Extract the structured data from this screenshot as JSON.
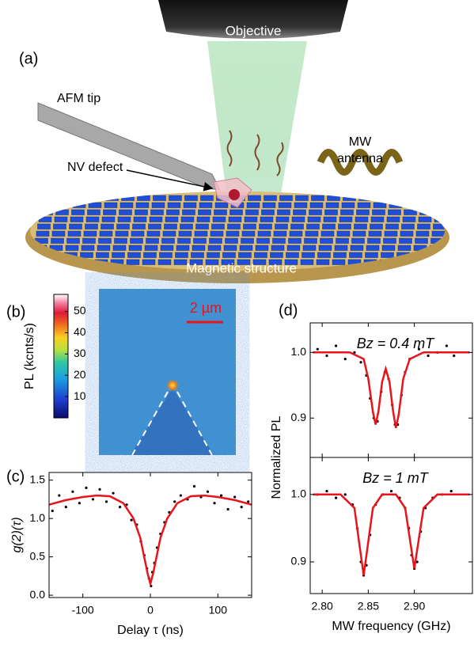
{
  "panels": [
    "(a)",
    "(b)",
    "(c)",
    "(d)"
  ],
  "illustration": {
    "objective": "Objective",
    "afm_tip": "AFM tip",
    "nv_defect": "NV defect",
    "mw_antenna": [
      "MW",
      "antenna"
    ],
    "magnetic_structure": "Magnetic structure"
  },
  "colorbar": {
    "label": "PL (kcnts/s)",
    "lim": [
      0,
      58
    ],
    "ticks": [
      10,
      20,
      30,
      40,
      50
    ]
  },
  "scale_bar": "2 µm",
  "chart_data": [
    {
      "type": "line",
      "xlabel": "Delay τ (ns)",
      "ylabel": "g(2)(τ)",
      "xlim": [
        -150,
        150
      ],
      "ylim": [
        -0.03,
        1.6
      ],
      "xticks": [
        -100,
        0,
        100
      ],
      "yticks": [
        {
          "value": 0,
          "label": "0.0"
        },
        0.5,
        {
          "value": 1,
          "label": "1.0"
        },
        1.5
      ],
      "series": [
        {
          "type": "scatter",
          "color": "#000000",
          "x": [
            -145,
            -135,
            -125,
            -115,
            -105,
            -95,
            -85,
            -75,
            -65,
            -55,
            -45,
            -35,
            -28,
            -20,
            -14,
            -9,
            -5,
            -2,
            1,
            3,
            6,
            10,
            15,
            21,
            28,
            36,
            45,
            55,
            65,
            75,
            85,
            95,
            105,
            115,
            125,
            135,
            145
          ],
          "values": [
            1.1,
            1.3,
            1.15,
            1.35,
            1.2,
            1.4,
            1.25,
            1.38,
            1.22,
            1.33,
            1.15,
            1.18,
            0.98,
            0.92,
            0.7,
            0.52,
            0.35,
            0.22,
            0.12,
            0.3,
            0.42,
            0.62,
            0.8,
            0.95,
            1.08,
            1.22,
            1.3,
            1.25,
            1.42,
            1.28,
            1.35,
            1.2,
            1.3,
            1.12,
            1.28,
            1.15,
            1.22
          ]
        },
        {
          "type": "line",
          "color": "#e8141b",
          "x": [
            -150,
            -125,
            -100,
            -80,
            -60,
            -40,
            -25,
            -15,
            -8,
            -4,
            0,
            4,
            8,
            15,
            25,
            40,
            60,
            80,
            100,
            125,
            150
          ],
          "values": [
            1.18,
            1.24,
            1.28,
            1.3,
            1.29,
            1.2,
            1.0,
            0.75,
            0.45,
            0.28,
            0.15,
            0.28,
            0.45,
            0.75,
            1.0,
            1.2,
            1.29,
            1.3,
            1.28,
            1.24,
            1.18
          ]
        }
      ]
    },
    {
      "type": "line",
      "ylabel": "Normalized PL",
      "annotation": "Bz = 0.4 mT",
      "xlim": [
        2.787,
        2.963
      ],
      "ylim": [
        0.84,
        1.045
      ],
      "xticks": [
        2.8,
        2.85,
        2.9
      ],
      "yticks": [
        0.9,
        {
          "value": 1,
          "label": "1.0"
        }
      ],
      "series": [
        {
          "type": "scatter",
          "color": "#000000",
          "x": [
            2.795,
            2.805,
            2.815,
            2.825,
            2.835,
            2.842,
            2.848,
            2.852,
            2.856,
            2.86,
            2.864,
            2.868,
            2.872,
            2.876,
            2.879,
            2.882,
            2.886,
            2.89,
            2.895,
            2.905,
            2.915,
            2.925,
            2.935,
            2.943
          ],
          "values": [
            1.005,
            0.995,
            1.01,
            0.99,
            1.0,
            0.985,
            0.965,
            0.93,
            0.9,
            0.895,
            0.94,
            0.97,
            0.96,
            0.92,
            0.89,
            0.89,
            0.935,
            0.97,
            0.99,
            1.005,
            0.995,
            1.0,
            1.01,
            0.995
          ]
        },
        {
          "type": "line",
          "color": "#e8141b",
          "x": [
            2.79,
            2.83,
            2.845,
            2.85,
            2.855,
            2.858,
            2.861,
            2.865,
            2.869,
            2.873,
            2.877,
            2.88,
            2.883,
            2.888,
            2.895,
            2.91,
            2.96
          ],
          "values": [
            1.0,
            1.0,
            0.99,
            0.96,
            0.91,
            0.89,
            0.91,
            0.955,
            0.975,
            0.955,
            0.91,
            0.885,
            0.905,
            0.96,
            0.99,
            1.0,
            1.0
          ]
        }
      ]
    },
    {
      "type": "line",
      "xlabel": "MW frequency (GHz)",
      "annotation": "Bz = 1 mT",
      "xlim": [
        2.787,
        2.963
      ],
      "ylim": [
        0.853,
        1.055
      ],
      "xticks": [
        {
          "value": 2.8,
          "label": "2.80"
        },
        2.85,
        {
          "value": 2.9,
          "label": "2.90"
        }
      ],
      "yticks": [
        0.9,
        {
          "value": 1,
          "label": "1.0"
        }
      ],
      "series": [
        {
          "type": "scatter",
          "color": "#000000",
          "x": [
            2.795,
            2.805,
            2.815,
            2.825,
            2.833,
            2.838,
            2.842,
            2.845,
            2.848,
            2.852,
            2.858,
            2.866,
            2.875,
            2.884,
            2.89,
            2.894,
            2.897,
            2.9,
            2.903,
            2.907,
            2.912,
            2.92,
            2.93,
            2.94
          ],
          "values": [
            1.0,
            1.005,
            0.995,
            1.0,
            0.985,
            0.95,
            0.9,
            0.88,
            0.895,
            0.94,
            0.985,
            1.0,
            1.005,
            0.995,
            0.98,
            0.95,
            0.91,
            0.89,
            0.9,
            0.945,
            0.98,
            0.995,
            1.0,
            1.005
          ]
        },
        {
          "type": "line",
          "color": "#e8141b",
          "x": [
            2.79,
            2.82,
            2.835,
            2.84,
            2.845,
            2.85,
            2.855,
            2.865,
            2.88,
            2.89,
            2.895,
            2.9,
            2.905,
            2.91,
            2.925,
            2.96
          ],
          "values": [
            1.0,
            1.0,
            0.98,
            0.93,
            0.88,
            0.93,
            0.98,
            1.0,
            1.0,
            0.98,
            0.935,
            0.89,
            0.935,
            0.98,
            1.0,
            1.0
          ]
        }
      ]
    }
  ]
}
